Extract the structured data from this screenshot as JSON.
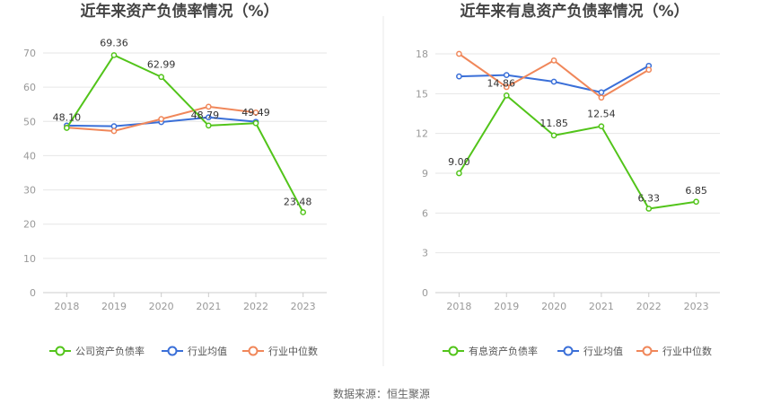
{
  "source_label": "数据来源：恒生聚源",
  "colors": {
    "company": "#52c41a",
    "avg": "#3a6fd8",
    "median": "#f0875a",
    "grid": "#e6e6e6",
    "axis": "#cccccc",
    "divider": "#e8e8e8"
  },
  "chart_data": [
    {
      "type": "line",
      "title": "近年来资产负债率情况（%）",
      "categories": [
        "2018",
        "2019",
        "2020",
        "2021",
        "2022",
        "2023"
      ],
      "ylim": [
        0,
        70
      ],
      "yticks": [
        0,
        10,
        20,
        30,
        40,
        50,
        60,
        70
      ],
      "series": [
        {
          "name": "公司资产负债率",
          "color_key": "company",
          "values": [
            48.1,
            69.36,
            62.99,
            48.79,
            49.49,
            23.48
          ],
          "labels": [
            "48.10",
            "69.36",
            "62.99",
            "48.79",
            "49.49",
            "23.48"
          ]
        },
        {
          "name": "行业均值",
          "color_key": "avg",
          "values": [
            48.8,
            48.6,
            49.8,
            51.2,
            49.9,
            null
          ]
        },
        {
          "name": "行业中位数",
          "color_key": "median",
          "values": [
            48.2,
            47.2,
            50.7,
            54.3,
            52.6,
            null
          ]
        }
      ]
    },
    {
      "type": "line",
      "title": "近年来有息资产负债率情况（%）",
      "categories": [
        "2018",
        "2019",
        "2020",
        "2021",
        "2022",
        "2023"
      ],
      "ylim": [
        0,
        18
      ],
      "yticks": [
        0,
        3,
        6,
        9,
        12,
        15,
        18
      ],
      "series": [
        {
          "name": "有息资产负债率",
          "color_key": "company",
          "values": [
            9.0,
            14.86,
            11.85,
            12.54,
            6.33,
            6.85
          ],
          "labels": [
            "9.00",
            "14.86",
            "11.85",
            "12.54",
            "6.33",
            "6.85"
          ]
        },
        {
          "name": "行业均值",
          "color_key": "avg",
          "values": [
            16.3,
            16.4,
            15.9,
            15.1,
            17.1,
            null
          ]
        },
        {
          "name": "行业中位数",
          "color_key": "median",
          "values": [
            18.0,
            15.5,
            17.5,
            14.7,
            16.8,
            null
          ]
        }
      ]
    }
  ]
}
